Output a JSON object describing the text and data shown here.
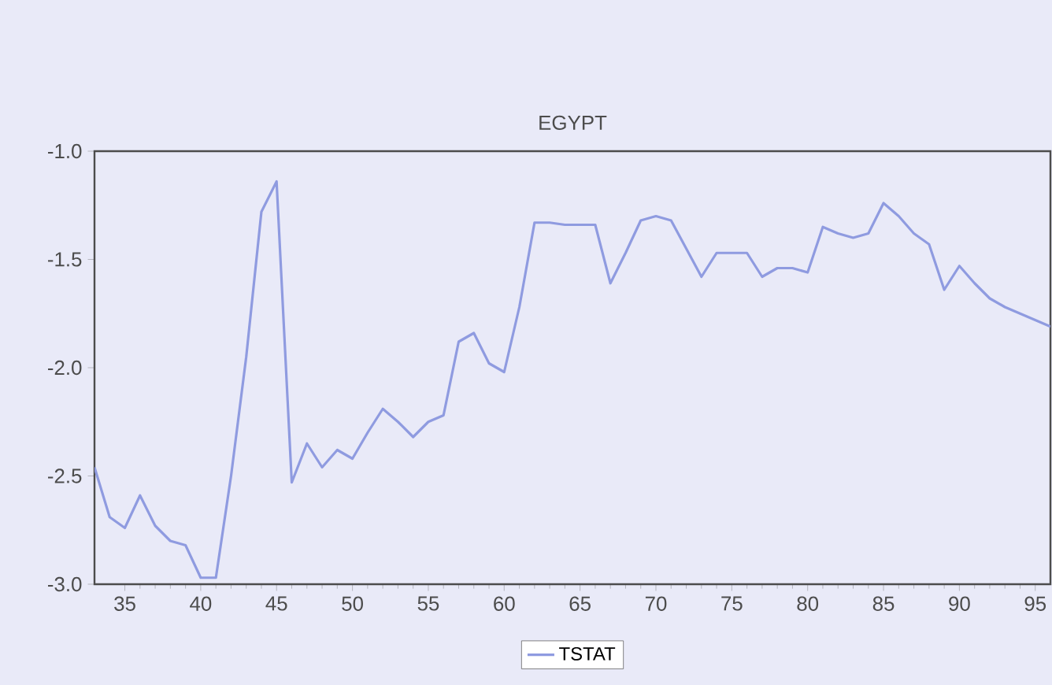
{
  "chart_data": {
    "type": "line",
    "title": "EGYPT",
    "x": [
      33,
      34,
      35,
      36,
      37,
      38,
      39,
      40,
      41,
      42,
      43,
      44,
      45,
      46,
      47,
      48,
      49,
      50,
      51,
      52,
      53,
      54,
      55,
      56,
      57,
      58,
      59,
      60,
      61,
      62,
      63,
      64,
      65,
      66,
      67,
      68,
      69,
      70,
      71,
      72,
      73,
      74,
      75,
      76,
      77,
      78,
      79,
      80,
      81,
      82,
      83,
      84,
      85,
      86,
      87,
      88,
      89,
      90,
      91,
      92,
      93,
      94,
      95,
      96
    ],
    "series": [
      {
        "name": "TSTAT",
        "color": "#8f9be0",
        "values": [
          -2.46,
          -2.69,
          -2.74,
          -2.59,
          -2.73,
          -2.8,
          -2.82,
          -2.97,
          -2.97,
          -2.5,
          -1.95,
          -1.28,
          -1.14,
          -2.53,
          -2.35,
          -2.46,
          -2.38,
          -2.42,
          -2.3,
          -2.19,
          -2.25,
          -2.32,
          -2.25,
          -2.22,
          -1.88,
          -1.84,
          -1.98,
          -2.02,
          -1.72,
          -1.33,
          -1.33,
          -1.34,
          -1.34,
          -1.34,
          -1.61,
          -1.47,
          -1.32,
          -1.3,
          -1.32,
          -1.45,
          -1.58,
          -1.47,
          -1.47,
          -1.47,
          -1.58,
          -1.54,
          -1.54,
          -1.56,
          -1.35,
          -1.38,
          -1.4,
          -1.38,
          -1.24,
          -1.3,
          -1.38,
          -1.43,
          -1.64,
          -1.53,
          -1.61,
          -1.68,
          -1.72,
          -1.75,
          -1.78,
          -1.81
        ]
      }
    ],
    "xlim": [
      33,
      96
    ],
    "xticks": [
      35,
      40,
      45,
      50,
      55,
      60,
      65,
      70,
      75,
      80,
      85,
      90,
      95
    ],
    "ylim": [
      -3.0,
      -1.0
    ],
    "yticks": [
      {
        "value": -3.0,
        "label": "-3.0"
      },
      {
        "value": -2.5,
        "label": "-2.5"
      },
      {
        "value": -2.0,
        "label": "-2.0"
      },
      {
        "value": -1.5,
        "label": "-1.5"
      },
      {
        "value": -1.0,
        "label": "-1.0"
      }
    ],
    "legend": "bottom",
    "grid": false,
    "marker": "none",
    "line_style": "solid"
  }
}
